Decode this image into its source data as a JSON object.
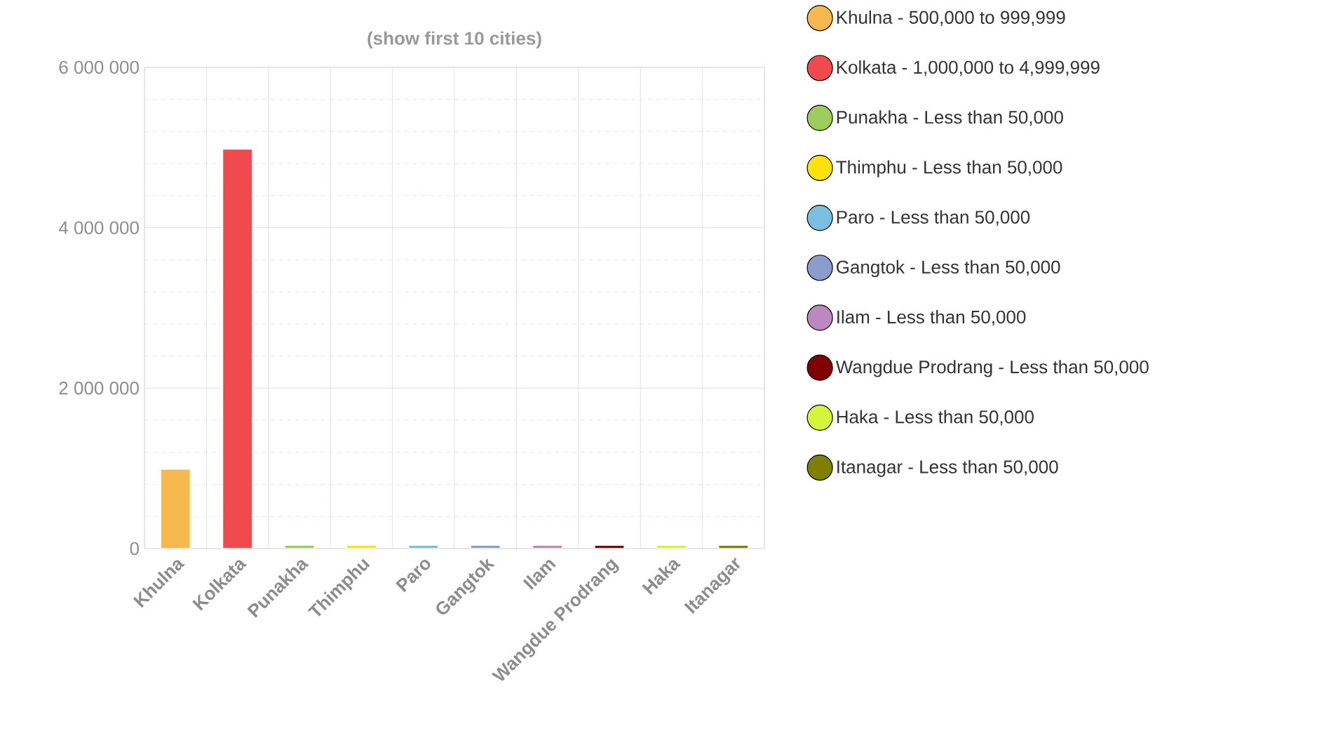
{
  "chart_data": {
    "type": "bar",
    "title": "(show first 10 cities)",
    "categories": [
      "Khulna",
      "Kolkata",
      "Punakha",
      "Thimphu",
      "Paro",
      "Gangtok",
      "Ilam",
      "Wangdue Prodrang",
      "Haka",
      "Itanagar"
    ],
    "series": [
      {
        "name": "Khulna - 500,000 to 999,999",
        "color": "#f7b84f",
        "values": [
          990000,
          null,
          null,
          null,
          null,
          null,
          null,
          null,
          null,
          null
        ]
      },
      {
        "name": "Kolkata - 1,000,000 to 4,999,999",
        "color": "#f04a4e",
        "values": [
          null,
          4980000,
          null,
          null,
          null,
          null,
          null,
          null,
          null,
          null
        ]
      },
      {
        "name": "Punakha - Less than 50,000",
        "color": "#9ccc5a",
        "values": [
          null,
          null,
          40000,
          null,
          null,
          null,
          null,
          null,
          null,
          null
        ]
      },
      {
        "name": "Thimphu - Less than 50,000",
        "color": "#ffe20a",
        "values": [
          null,
          null,
          null,
          40000,
          null,
          null,
          null,
          null,
          null,
          null
        ]
      },
      {
        "name": "Paro - Less than 50,000",
        "color": "#7bbfe0",
        "values": [
          null,
          null,
          null,
          null,
          40000,
          null,
          null,
          null,
          null,
          null
        ]
      },
      {
        "name": "Gangtok - Less than 50,000",
        "color": "#8a9ccc",
        "values": [
          null,
          null,
          null,
          null,
          null,
          40000,
          null,
          null,
          null,
          null
        ]
      },
      {
        "name": "Ilam - Less than 50,000",
        "color": "#bd88bf",
        "values": [
          null,
          null,
          null,
          null,
          null,
          null,
          40000,
          null,
          null,
          null
        ]
      },
      {
        "name": "Wangdue Prodrang - Less than 50,000",
        "color": "#800000",
        "values": [
          null,
          null,
          null,
          null,
          null,
          null,
          null,
          40000,
          null,
          null
        ]
      },
      {
        "name": "Haka - Less than 50,000",
        "color": "#d4f53c",
        "values": [
          null,
          null,
          null,
          null,
          null,
          null,
          null,
          null,
          40000,
          null
        ]
      },
      {
        "name": "Itanagar - Less than 50,000",
        "color": "#7f7f00",
        "values": [
          null,
          null,
          null,
          null,
          null,
          null,
          null,
          null,
          null,
          40000
        ]
      }
    ],
    "ylim": [
      0,
      6000000
    ],
    "yticks": [
      {
        "value": 0,
        "label": "0"
      },
      {
        "value": 2000000,
        "label": "2 000 000"
      },
      {
        "value": 4000000,
        "label": "4 000 000"
      },
      {
        "value": 6000000,
        "label": "6 000 000"
      }
    ],
    "grid": true,
    "legend": "right"
  }
}
